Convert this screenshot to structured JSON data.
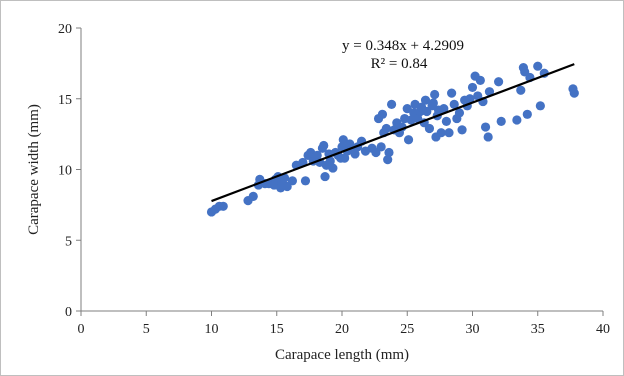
{
  "chart_data": {
    "type": "scatter",
    "title": "",
    "xlabel": "Carapace length (mm)",
    "ylabel": "Carapace width (mm)",
    "xlim": [
      0,
      40
    ],
    "ylim": [
      0,
      20
    ],
    "x_ticks": [
      0,
      5,
      10,
      15,
      20,
      25,
      30,
      35,
      40
    ],
    "y_ticks": [
      0,
      5,
      10,
      15,
      20
    ],
    "grid": false,
    "legend": "none",
    "marker_color": "#4472C4",
    "trendline_color": "#000000",
    "trendline": {
      "slope": 0.348,
      "intercept": 4.2909,
      "x_range": [
        10,
        37.8
      ]
    },
    "annotations": {
      "equation": "y = 0.348x + 4.2909",
      "r_squared": "R² = 0.84"
    },
    "series": [
      {
        "points": [
          [
            10.0,
            7.0
          ],
          [
            10.3,
            7.2
          ],
          [
            10.6,
            7.4
          ],
          [
            10.9,
            7.4
          ],
          [
            12.8,
            7.8
          ],
          [
            13.2,
            8.1
          ],
          [
            13.6,
            8.9
          ],
          [
            13.7,
            9.3
          ],
          [
            14.1,
            9.0
          ],
          [
            14.4,
            9.0
          ],
          [
            14.8,
            8.9
          ],
          [
            14.9,
            9.3
          ],
          [
            15.1,
            9.5
          ],
          [
            15.3,
            8.7
          ],
          [
            15.4,
            9.0
          ],
          [
            15.6,
            9.4
          ],
          [
            15.8,
            8.8
          ],
          [
            16.2,
            9.2
          ],
          [
            16.5,
            10.3
          ],
          [
            17.0,
            10.5
          ],
          [
            17.2,
            9.2
          ],
          [
            17.4,
            11.0
          ],
          [
            17.6,
            11.2
          ],
          [
            17.8,
            10.6
          ],
          [
            18.0,
            10.9
          ],
          [
            18.1,
            11.0
          ],
          [
            18.3,
            10.5
          ],
          [
            18.5,
            11.5
          ],
          [
            18.6,
            11.7
          ],
          [
            18.7,
            9.5
          ],
          [
            18.8,
            10.3
          ],
          [
            19.0,
            11.1
          ],
          [
            19.1,
            10.6
          ],
          [
            19.3,
            10.1
          ],
          [
            19.5,
            11.2
          ],
          [
            19.7,
            11.0
          ],
          [
            19.9,
            10.8
          ],
          [
            20.0,
            11.6
          ],
          [
            20.1,
            12.1
          ],
          [
            20.2,
            10.8
          ],
          [
            20.4,
            11.3
          ],
          [
            20.6,
            11.8
          ],
          [
            20.8,
            11.5
          ],
          [
            21.0,
            11.1
          ],
          [
            21.2,
            11.6
          ],
          [
            21.5,
            12.0
          ],
          [
            21.8,
            11.3
          ],
          [
            22.3,
            11.5
          ],
          [
            22.6,
            11.2
          ],
          [
            22.8,
            13.6
          ],
          [
            23.0,
            11.6
          ],
          [
            23.1,
            13.9
          ],
          [
            23.2,
            12.6
          ],
          [
            23.4,
            12.9
          ],
          [
            23.5,
            10.7
          ],
          [
            23.6,
            11.2
          ],
          [
            23.8,
            14.6
          ],
          [
            24.0,
            12.8
          ],
          [
            24.2,
            13.3
          ],
          [
            24.4,
            12.6
          ],
          [
            24.6,
            13.0
          ],
          [
            24.8,
            13.6
          ],
          [
            25.0,
            14.3
          ],
          [
            25.1,
            12.1
          ],
          [
            25.3,
            13.5
          ],
          [
            25.5,
            14.0
          ],
          [
            25.6,
            14.6
          ],
          [
            25.8,
            13.6
          ],
          [
            26.0,
            14.1
          ],
          [
            26.1,
            14.4
          ],
          [
            26.3,
            13.3
          ],
          [
            26.4,
            14.9
          ],
          [
            26.5,
            14.1
          ],
          [
            26.7,
            12.9
          ],
          [
            26.9,
            14.5
          ],
          [
            27.0,
            14.7
          ],
          [
            27.1,
            15.3
          ],
          [
            27.2,
            12.3
          ],
          [
            27.3,
            13.8
          ],
          [
            27.4,
            14.2
          ],
          [
            27.6,
            12.6
          ],
          [
            27.8,
            14.3
          ],
          [
            28.0,
            13.4
          ],
          [
            28.2,
            12.6
          ],
          [
            28.4,
            15.4
          ],
          [
            28.6,
            14.6
          ],
          [
            28.8,
            13.6
          ],
          [
            29.0,
            14.0
          ],
          [
            29.2,
            12.8
          ],
          [
            29.4,
            14.9
          ],
          [
            29.6,
            14.5
          ],
          [
            29.8,
            15.0
          ],
          [
            30.0,
            15.8
          ],
          [
            30.2,
            16.6
          ],
          [
            30.4,
            15.2
          ],
          [
            30.6,
            16.3
          ],
          [
            30.8,
            14.8
          ],
          [
            31.0,
            13.0
          ],
          [
            31.2,
            12.3
          ],
          [
            31.3,
            15.5
          ],
          [
            32.0,
            16.2
          ],
          [
            32.2,
            13.4
          ],
          [
            33.4,
            13.5
          ],
          [
            33.7,
            15.6
          ],
          [
            33.9,
            17.2
          ],
          [
            34.0,
            16.9
          ],
          [
            34.2,
            13.9
          ],
          [
            34.4,
            16.5
          ],
          [
            35.0,
            17.3
          ],
          [
            35.2,
            14.5
          ],
          [
            35.5,
            16.8
          ],
          [
            37.7,
            15.7
          ],
          [
            37.8,
            15.4
          ]
        ]
      }
    ]
  }
}
